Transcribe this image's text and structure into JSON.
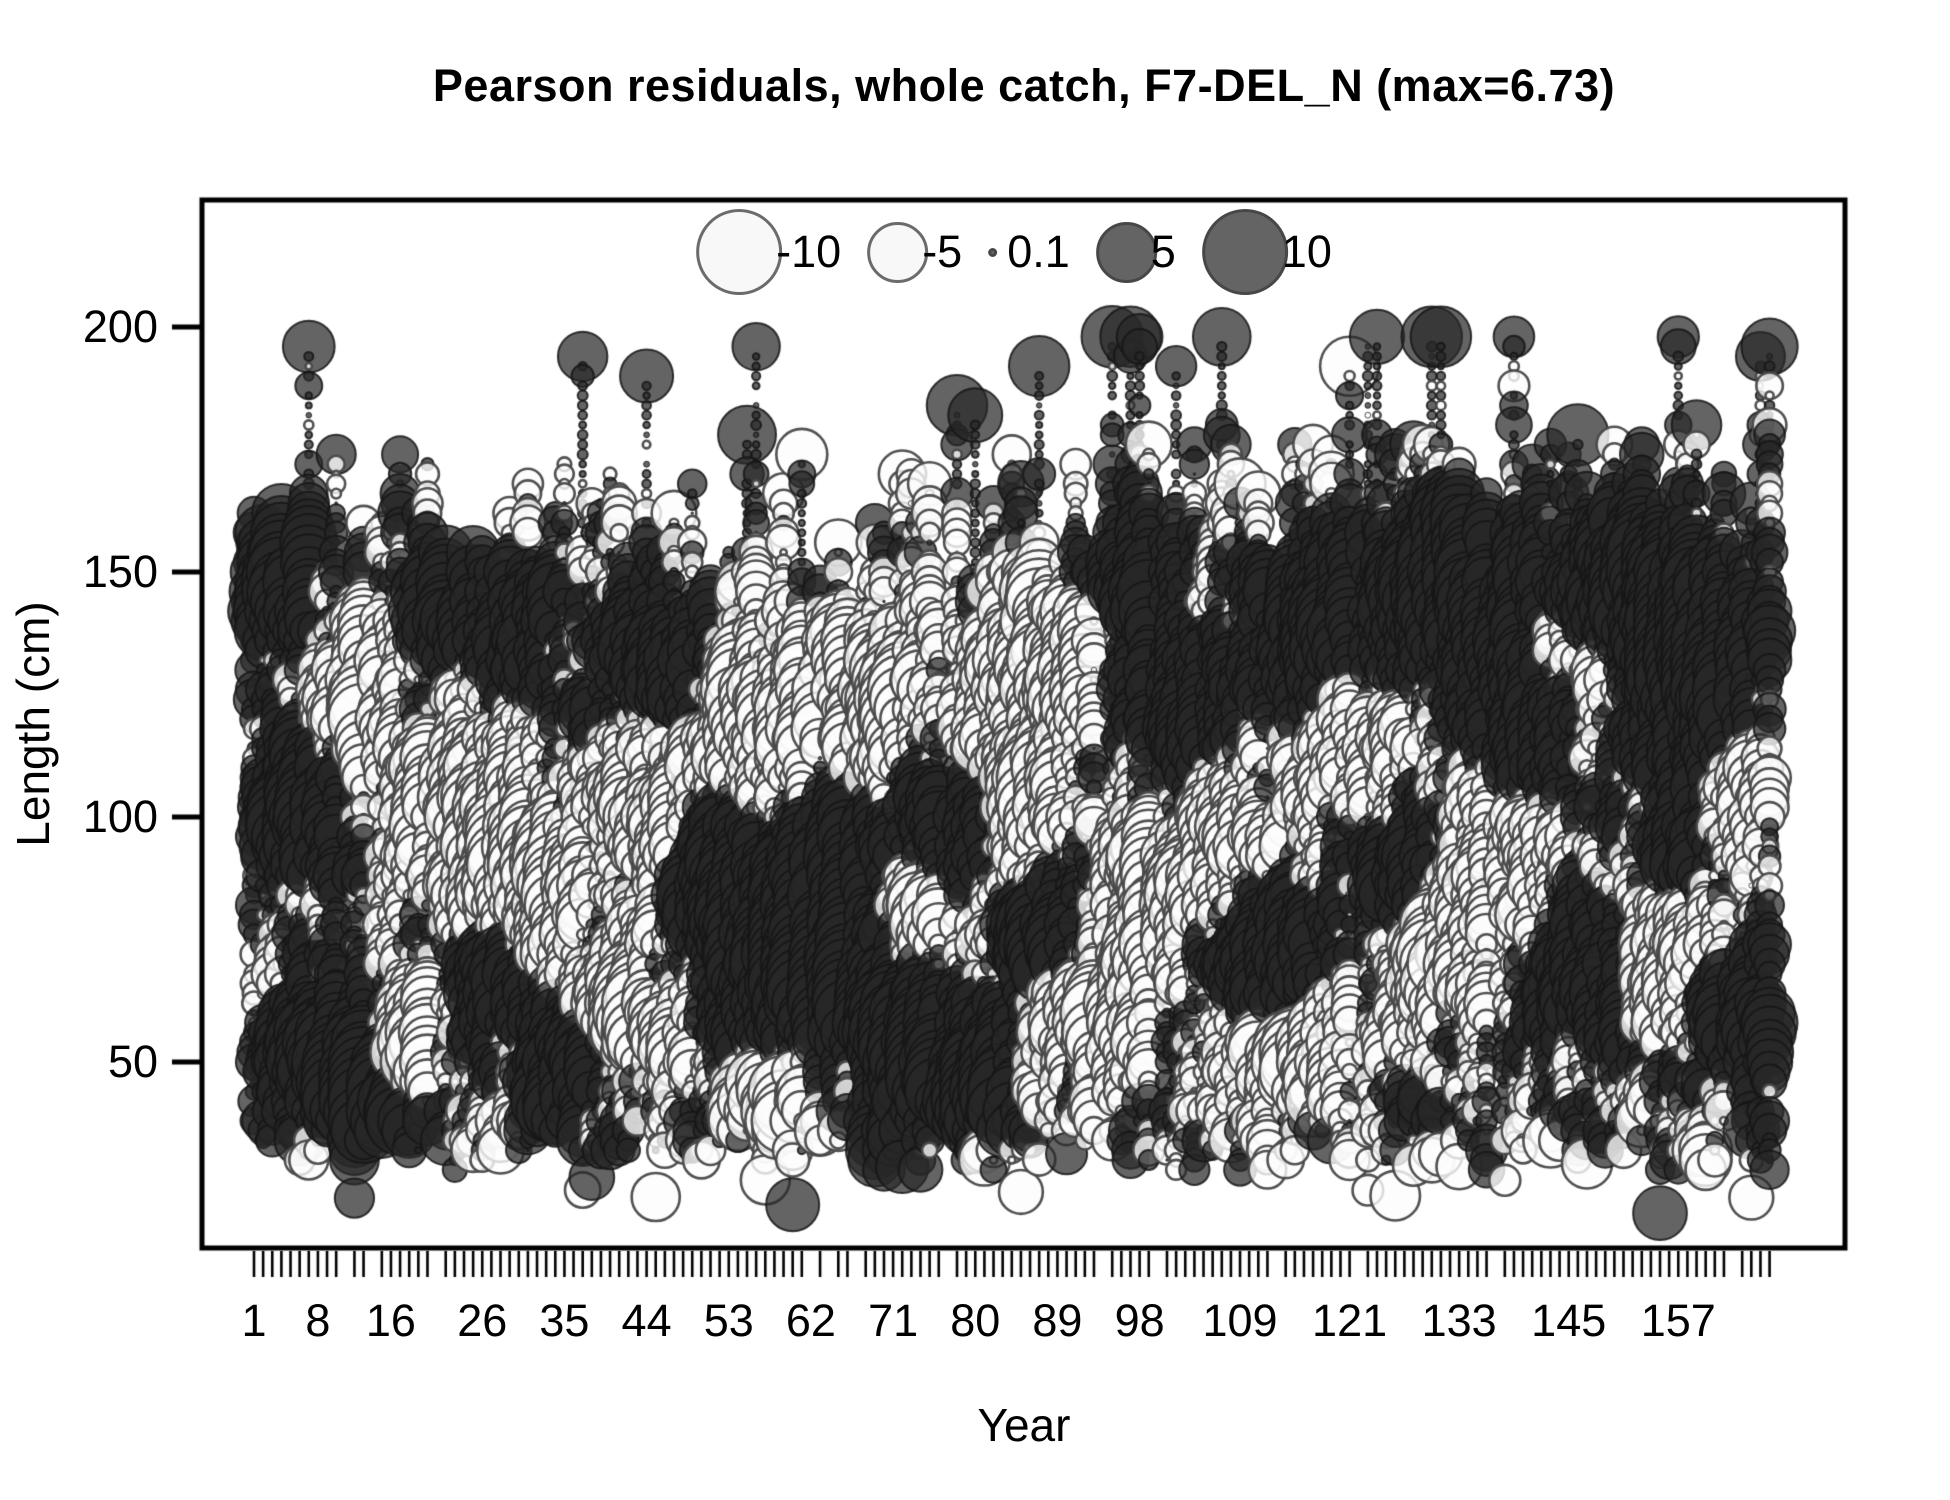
{
  "title": "Pearson residuals, whole catch, F7-DEL_N (max=6.73)",
  "axes": {
    "x": {
      "label": "Year",
      "ticks": [
        1,
        8,
        16,
        26,
        35,
        44,
        53,
        62,
        71,
        80,
        89,
        98,
        109,
        121,
        133,
        145,
        157
      ]
    },
    "y": {
      "label": "Length (cm)",
      "ticks": [
        200,
        150,
        100,
        50
      ]
    }
  },
  "legend": {
    "items": [
      {
        "label": "-10",
        "value": -10,
        "type": "open"
      },
      {
        "label": "-5",
        "value": -5,
        "type": "open"
      },
      {
        "label": "0.1",
        "value": 0.1,
        "type": "filled"
      },
      {
        "label": "5",
        "value": 5,
        "type": "filled"
      },
      {
        "label": "10",
        "value": 10,
        "type": "filled"
      }
    ]
  },
  "colors": {
    "background": "#ffffff",
    "frame": "#000000",
    "text": "#000000",
    "positive_fill": "#646464",
    "positive_stroke": "#2a2a2a",
    "negative_fill": "#f8f8f8",
    "negative_stroke": "#555555"
  },
  "chart_data": {
    "type": "bubble",
    "title": "Pearson residuals, whole catch, F7-DEL_N (max=6.73)",
    "xlabel": "Year",
    "ylabel": "Length (cm)",
    "x_ticks": [
      1,
      8,
      16,
      26,
      35,
      44,
      53,
      62,
      71,
      80,
      89,
      98,
      109,
      121,
      133,
      145,
      157
    ],
    "y_ticks": [
      200,
      150,
      100,
      50
    ],
    "x_range": [
      1,
      168
    ],
    "y_range": [
      20,
      205
    ],
    "max_abs_residual": 6.73,
    "legend_values": [
      -10,
      -5,
      0.1,
      5,
      10
    ],
    "encoding": {
      "size": "circle radius proportional to sqrt(|Pearson residual|), radius(10) = 43 px",
      "sign": {
        "positive": "filled dark gray circle",
        "negative": "open white circle"
      }
    },
    "grid": false,
    "legend_position": "top-center inside plot",
    "note": "Several thousand overlapping residual bubbles; individual values not legible in source, cloud reproduced procedurally from the spec below.",
    "render": {
      "seed": 1337,
      "n_columns": 168,
      "bin_step_cm": 2,
      "column_skip_prob": 0.07,
      "len_min_base": 28,
      "len_max_base": 138,
      "spike_prob": 0.17,
      "blobs": [
        [
          4,
          150,
          4,
          16,
          5.5
        ],
        [
          7,
          103,
          5,
          15,
          6
        ],
        [
          10,
          52,
          6,
          12,
          6.5
        ],
        [
          14,
          42,
          4,
          8,
          5
        ],
        [
          22,
          145,
          4,
          14,
          4.5
        ],
        [
          28,
          66,
          5,
          12,
          5
        ],
        [
          31,
          140,
          4,
          16,
          4
        ],
        [
          36,
          50,
          4,
          10,
          5.5
        ],
        [
          46,
          132,
          6,
          16,
          4.5
        ],
        [
          52,
          88,
          5,
          14,
          4.5
        ],
        [
          60,
          70,
          8,
          18,
          5.5
        ],
        [
          65,
          95,
          5,
          12,
          4
        ],
        [
          72,
          60,
          7,
          14,
          5
        ],
        [
          80,
          45,
          5,
          9,
          6
        ],
        [
          78,
          98,
          5,
          12,
          4.5
        ],
        [
          88,
          75,
          5,
          14,
          4.5
        ],
        [
          97,
          148,
          5,
          14,
          4.5
        ],
        [
          103,
          118,
          6,
          16,
          4
        ],
        [
          112,
          72,
          6,
          14,
          4.5
        ],
        [
          118,
          138,
          7,
          18,
          4.5
        ],
        [
          126,
          90,
          5,
          12,
          4
        ],
        [
          133,
          148,
          8,
          16,
          5
        ],
        [
          140,
          120,
          6,
          20,
          4.5
        ],
        [
          148,
          68,
          6,
          14,
          4.5
        ],
        [
          152,
          148,
          7,
          16,
          5
        ],
        [
          160,
          128,
          7,
          22,
          5
        ],
        [
          165,
          60,
          5,
          12,
          4.5
        ],
        [
          158,
          95,
          4,
          10,
          4
        ],
        [
          12,
          120,
          5,
          20,
          -4.5
        ],
        [
          18,
          55,
          4,
          10,
          -5
        ],
        [
          25,
          100,
          6,
          22,
          -3.5
        ],
        [
          33,
          85,
          5,
          16,
          -4
        ],
        [
          42,
          60,
          5,
          12,
          -4.5
        ],
        [
          44,
          105,
          5,
          18,
          -3.5
        ],
        [
          55,
          120,
          6,
          16,
          -4
        ],
        [
          58,
          45,
          6,
          8,
          -4.5
        ],
        [
          68,
          125,
          6,
          14,
          -4
        ],
        [
          75,
          78,
          5,
          14,
          -4
        ],
        [
          85,
          105,
          6,
          18,
          -3.5
        ],
        [
          92,
          60,
          6,
          12,
          -4.5
        ],
        [
          100,
          85,
          6,
          16,
          -4
        ],
        [
          108,
          100,
          5,
          14,
          -3.5
        ],
        [
          115,
          52,
          7,
          10,
          -4.5
        ],
        [
          122,
          115,
          6,
          16,
          -3.5
        ],
        [
          130,
          70,
          5,
          12,
          -4
        ],
        [
          138,
          95,
          6,
          16,
          -4
        ],
        [
          146,
          130,
          5,
          12,
          -3.5
        ],
        [
          155,
          70,
          6,
          14,
          -4
        ],
        [
          163,
          105,
          5,
          16,
          -4
        ],
        [
          90,
          135,
          7,
          14,
          -3.5
        ]
      ]
    }
  }
}
